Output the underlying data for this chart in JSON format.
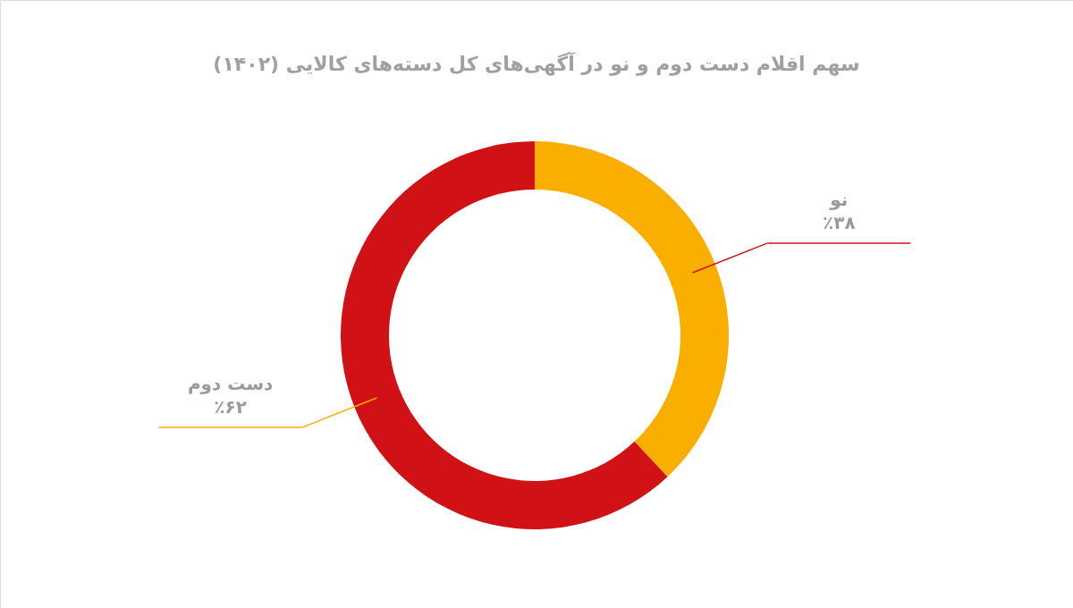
{
  "chart_data": {
    "type": "donut",
    "title": "سهم اقلام دست دوم و نو در آگهی‌های کل دسته‌های کالایی (۱۴۰۲)",
    "categories": [
      "نو",
      "دست دوم"
    ],
    "values": [
      38,
      62
    ],
    "colors": [
      "#f9ae00",
      "#d01116"
    ],
    "value_labels": [
      "٪۳۸",
      "٪۶۲"
    ]
  }
}
